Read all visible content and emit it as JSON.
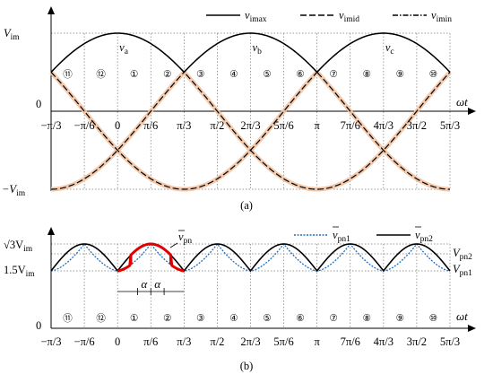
{
  "chart_data": [
    {
      "type": "line",
      "caption": "(a)",
      "y_axis": {
        "top_label": "V",
        "top_sub": "im",
        "zero_label": "0",
        "bottom_label": "−V",
        "bottom_sub": "im"
      },
      "x_axis_label": "ωt",
      "x_ticks": [
        "−π/3",
        "−π/6",
        "0",
        "π/6",
        "π/3",
        "π/2",
        "2π/3",
        "5π/6",
        "π",
        "7π/6",
        "4π/3",
        "3π/2",
        "5π/3"
      ],
      "xlim_deg": [
        -60,
        300
      ],
      "ylim": [
        -1,
        1
      ],
      "sectors": [
        "⑪",
        "⑫",
        "①",
        "②",
        "③",
        "④",
        "⑤",
        "⑥",
        "⑦",
        "⑧",
        "⑨",
        "⑩"
      ],
      "phase_labels": [
        {
          "name": "v",
          "sub": "a",
          "peak_deg": 0
        },
        {
          "name": "v",
          "sub": "b",
          "peak_deg": 120
        },
        {
          "name": "v",
          "sub": "c",
          "peak_deg": 240
        }
      ],
      "legend": [
        {
          "name": "v",
          "sub": "imax",
          "style": "solid"
        },
        {
          "name": "v",
          "sub": "imid",
          "style": "dashed"
        },
        {
          "name": "v",
          "sub": "imin",
          "style": "dash-dot"
        }
      ],
      "series": [
        {
          "name": "v_a",
          "function": "cos(ωt)"
        },
        {
          "name": "v_b",
          "function": "cos(ωt − 2π/3)"
        },
        {
          "name": "v_c",
          "function": "cos(ωt + 2π/3)"
        }
      ],
      "highlight_color": "#f2c4a4",
      "line_color": "#000000"
    },
    {
      "type": "line",
      "caption": "(b)",
      "y_axis": {
        "top_label": "√3V",
        "top_sub": "im",
        "mid_label": "1.5V",
        "mid_sub": "im",
        "zero_label": "0"
      },
      "x_axis_label": "ωt",
      "x_ticks": [
        "−π/3",
        "−π/6",
        "0",
        "π/6",
        "π/3",
        "π/2",
        "2π/3",
        "5π/6",
        "π",
        "7π/6",
        "4π/3",
        "3π/2",
        "5π/3"
      ],
      "xlim_deg": [
        -60,
        300
      ],
      "sectors": [
        "⑪",
        "⑫",
        "①",
        "②",
        "③",
        "④",
        "⑤",
        "⑥",
        "⑦",
        "⑧",
        "⑨",
        "⑩"
      ],
      "right_labels": [
        {
          "name": "V",
          "sub": "pn2"
        },
        {
          "name": "V",
          "sub": "pn1"
        }
      ],
      "alpha_label": "α",
      "curve_label": {
        "name": "v",
        "sub": "pn",
        "overline": true
      },
      "legend": [
        {
          "name": "v",
          "sub": "pn1",
          "overline": true,
          "style": "dotted",
          "color": "#1f6fc0"
        },
        {
          "name": "v",
          "sub": "pn2",
          "overline": true,
          "style": "solid",
          "color": "#000000"
        }
      ],
      "series": [
        {
          "name": "v_pn1",
          "color": "#1f6fc0",
          "style": "dotted",
          "min": 1.5,
          "max": 1.732
        },
        {
          "name": "v_pn2",
          "color": "#000000",
          "style": "solid",
          "min": 1.5,
          "max": 1.732
        },
        {
          "name": "v_pn",
          "color": "#e00000",
          "style": "thick",
          "x_range_deg": [
            0,
            60
          ]
        }
      ]
    }
  ]
}
